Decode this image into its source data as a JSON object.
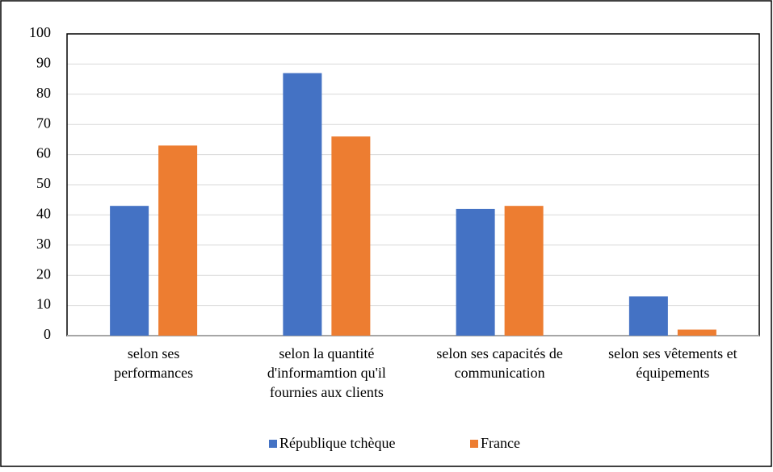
{
  "chart_data": {
    "type": "bar",
    "categories": [
      [
        "selon ses",
        "performances"
      ],
      [
        "selon la quantité",
        "d'informamtion qu'il",
        "fournies aux clients"
      ],
      [
        "selon ses capacités de",
        "communication"
      ],
      [
        "selon ses vêtements et",
        "équipements"
      ]
    ],
    "series": [
      {
        "name": "République tchèque",
        "color": "#4472c4",
        "values": [
          43,
          87,
          42,
          13
        ]
      },
      {
        "name": "France",
        "color": "#ed7d31",
        "values": [
          63,
          66,
          43,
          2
        ]
      }
    ],
    "ylim": [
      0,
      100
    ],
    "yticks": [
      0,
      10,
      20,
      30,
      40,
      50,
      60,
      70,
      80,
      90,
      100
    ],
    "grid": true,
    "legend": "bottom"
  }
}
